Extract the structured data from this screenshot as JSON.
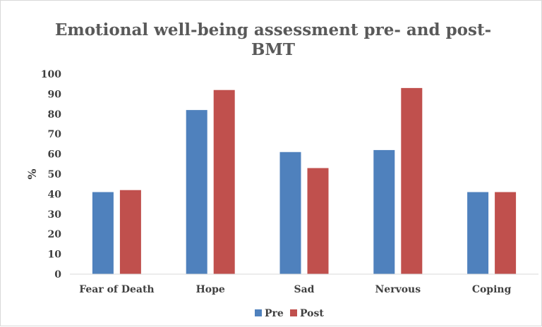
{
  "chart_data": {
    "type": "bar",
    "title_line1": "Emotional well-being assessment pre- and post-",
    "title_line2": "BMT",
    "xlabel": "",
    "ylabel": "%",
    "ylim": [
      0,
      100
    ],
    "yticks": [
      "0",
      "10",
      "20",
      "30",
      "40",
      "50",
      "60",
      "70",
      "80",
      "90",
      "100"
    ],
    "grid": false,
    "legend_position": "bottom",
    "categories": [
      "Fear of Death",
      "Hope",
      "Sad",
      "Nervous",
      "Coping"
    ],
    "series": [
      {
        "name": "Pre",
        "color": "#4f81bd",
        "values": [
          41,
          82,
          61,
          62,
          41
        ]
      },
      {
        "name": "Post",
        "color": "#c0504d",
        "values": [
          42,
          92,
          53,
          93,
          41
        ]
      }
    ]
  }
}
